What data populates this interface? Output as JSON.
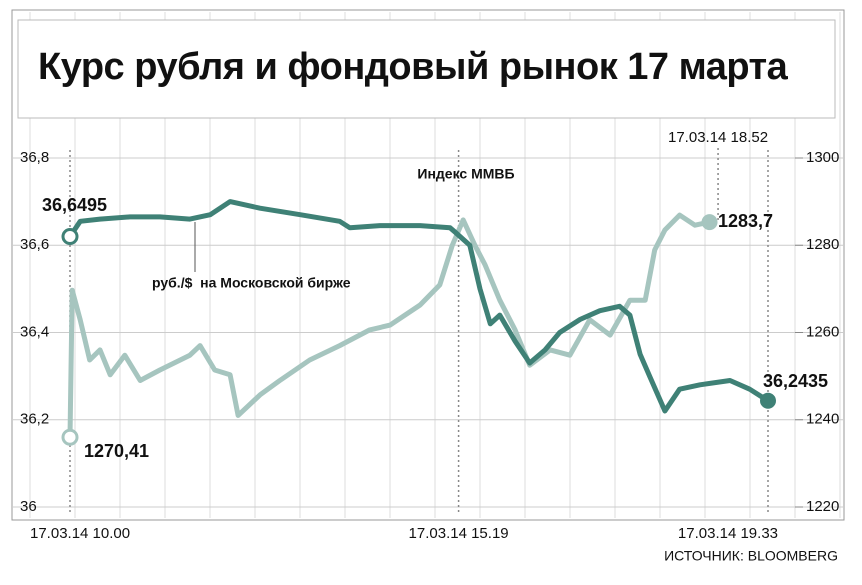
{
  "chart_data": {
    "type": "line",
    "title": "Курс рубля и фондовый рынок 17 марта",
    "xlim": [
      10,
      19.55
    ],
    "xticks": [
      {
        "value": 10,
        "label": "17.03.14 10.00"
      },
      {
        "value": 15.3167,
        "label": "17.03.14 15.19"
      },
      {
        "value": 18.8667,
        "label": "17.03.14 18.52"
      },
      {
        "value": 19.55,
        "label": "17.03.14 19.33"
      }
    ],
    "ylim": [
      36,
      36.8
    ],
    "yticks": [
      36,
      {
        "value": 36.2,
        "label": "36,2"
      },
      {
        "value": 36.4,
        "label": "36,4"
      },
      {
        "value": 36.6,
        "label": "36,6"
      },
      {
        "value": 36.8,
        "label": "36,8"
      }
    ],
    "y2lim": [
      1220,
      1300
    ],
    "y2ticks": [
      1220,
      1240,
      1260,
      1280,
      1300
    ],
    "grid": true,
    "series": [
      {
        "name": "Индекс ММВБ",
        "color": "#a6c5bf",
        "axis": "y2",
        "x": [
          10.0,
          10.03,
          10.14,
          10.27,
          10.41,
          10.55,
          10.75,
          10.96,
          11.23,
          11.64,
          11.78,
          11.98,
          12.19,
          12.3,
          12.6,
          12.87,
          13.28,
          13.69,
          14.1,
          14.38,
          14.79,
          15.06,
          15.23,
          15.38,
          15.54,
          15.68,
          15.88,
          16.09,
          16.29,
          16.57,
          16.84,
          17.11,
          17.39,
          17.66,
          17.87,
          18.0,
          18.14,
          18.34,
          18.55,
          18.75
        ],
        "values": [
          1236,
          1269.7,
          1262.9,
          1253.7,
          1256,
          1250.3,
          1254.8,
          1249,
          1251.4,
          1254.8,
          1257,
          1251.4,
          1250.3,
          1241,
          1245.7,
          1249,
          1253.7,
          1257,
          1260.6,
          1261.7,
          1266.3,
          1270.9,
          1280,
          1285.8,
          1280,
          1275.5,
          1267.4,
          1260.6,
          1252.5,
          1256,
          1254.8,
          1262.9,
          1259.4,
          1267.4,
          1267.4,
          1278.9,
          1283.5,
          1286.9,
          1284.6,
          1285.3
        ]
      },
      {
        "name": "руб./$  на Московской бирже",
        "color": "#3f8176",
        "x": [
          10.0,
          10.14,
          10.41,
          10.82,
          11.23,
          11.64,
          11.92,
          12.19,
          12.6,
          13.15,
          13.69,
          13.83,
          14.24,
          14.79,
          15.2,
          15.27,
          15.47,
          15.61,
          15.75,
          15.88,
          16.09,
          16.29,
          16.5,
          16.7,
          16.98,
          17.25,
          17.52,
          17.66,
          17.8,
          17.93,
          18.14,
          18.34,
          18.62,
          19.03,
          19.3,
          19.55
        ],
        "values": [
          36.62,
          36.655,
          36.66,
          36.665,
          36.665,
          36.66,
          36.67,
          36.7,
          36.685,
          36.67,
          36.655,
          36.64,
          36.645,
          36.645,
          36.64,
          36.63,
          36.6,
          36.5,
          36.42,
          36.44,
          36.38,
          36.33,
          36.36,
          36.4,
          36.43,
          36.45,
          36.46,
          36.44,
          36.35,
          36.3,
          36.22,
          36.27,
          36.28,
          36.29,
          36.27,
          36.2435
        ]
      }
    ],
    "annotations": [
      "36,6495",
      "1270,41",
      "36,2435",
      "1283,7"
    ],
    "source": "ИСТОЧНИК: BLOOMBERG"
  }
}
